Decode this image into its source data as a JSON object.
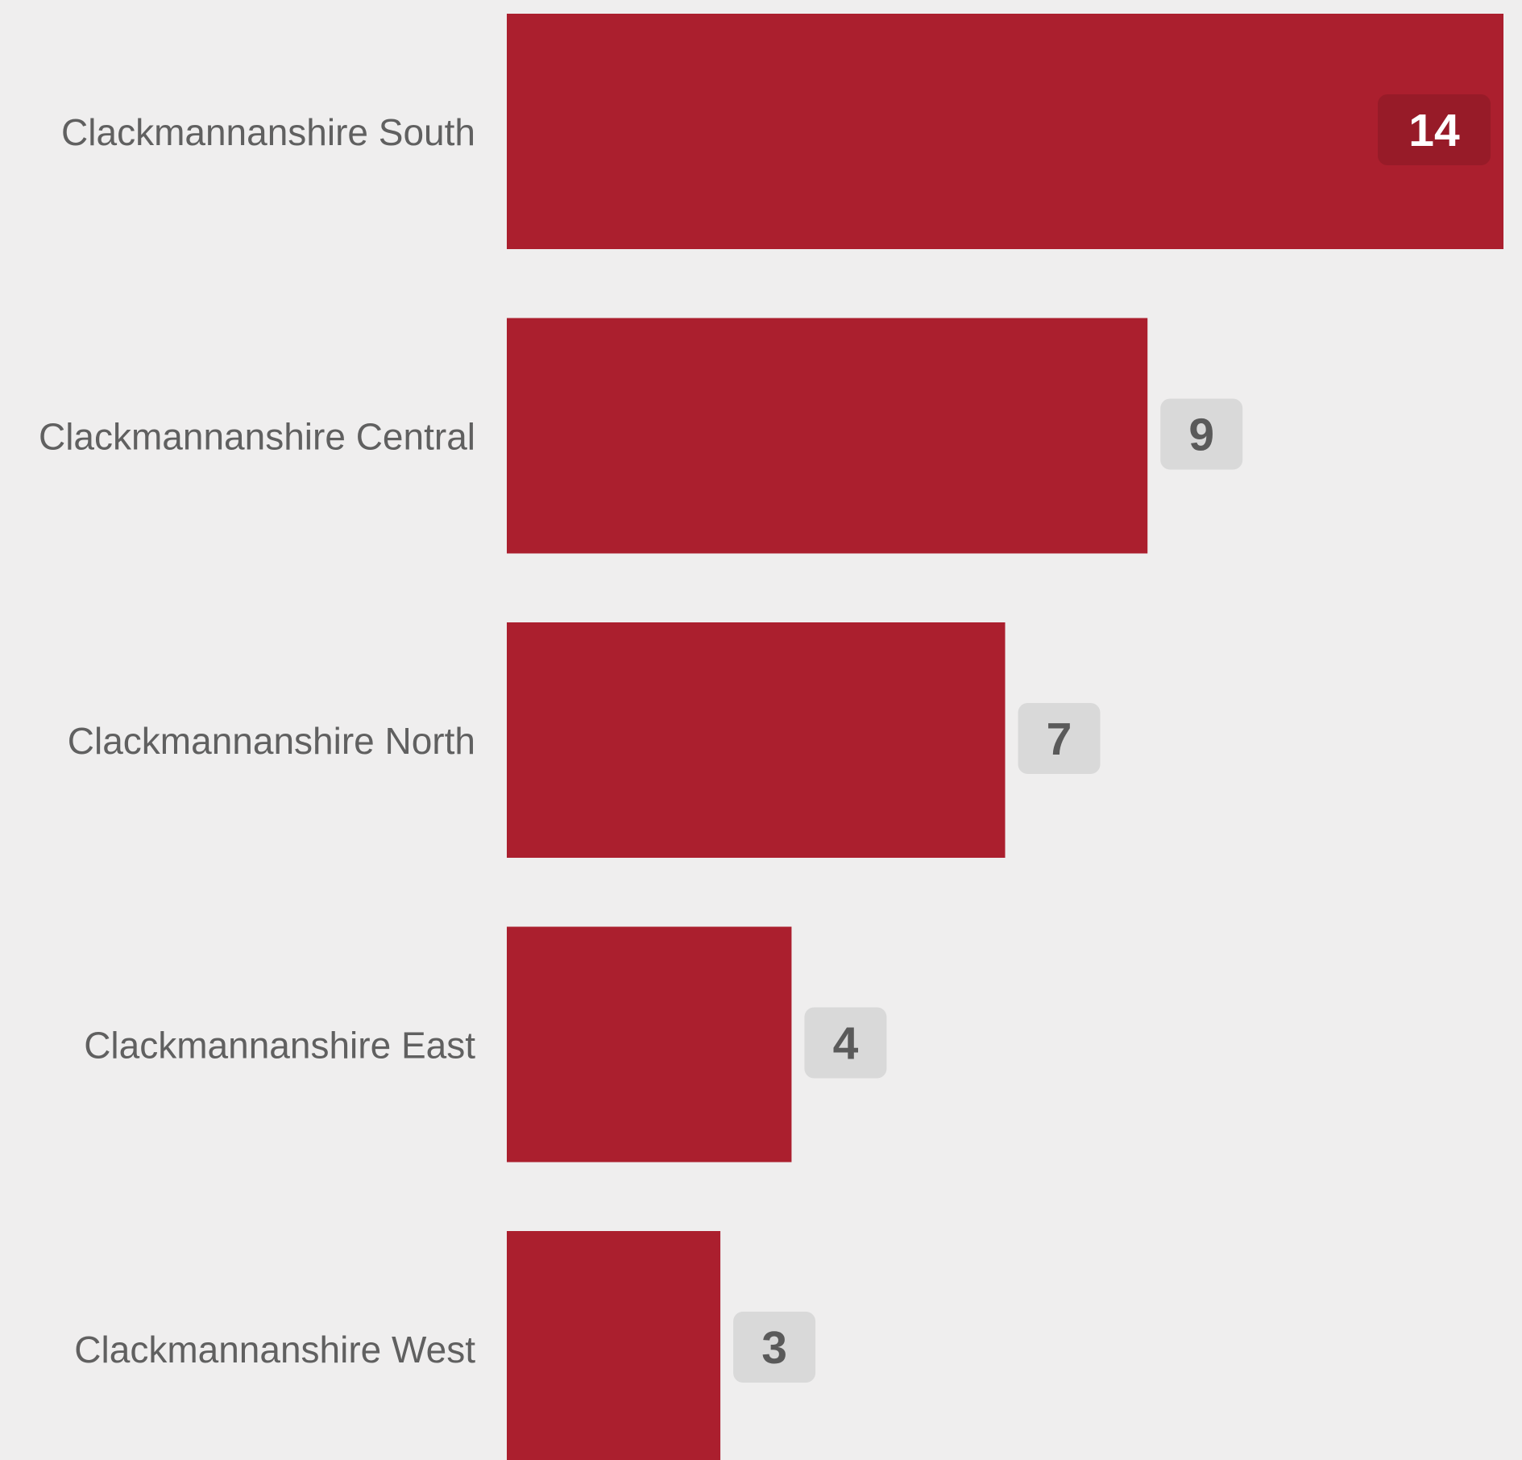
{
  "chart_data": {
    "type": "bar",
    "orientation": "horizontal",
    "title": "",
    "xlabel": "",
    "ylabel": "",
    "categories": [
      "Clackmannanshire South",
      "Clackmannanshire Central",
      "Clackmannanshire North",
      "Clackmannanshire East",
      "Clackmannanshire West"
    ],
    "values": [
      14,
      9,
      7,
      4,
      3
    ],
    "xlim": [
      0,
      14
    ],
    "grid": false,
    "legend": "none",
    "colors": {
      "bar": "#ab1f2e",
      "background": "#efeeee",
      "label_text": "#606060",
      "value_badge": "#d9d9d9",
      "value_badge_inside": "#971b28",
      "value_text": "#5a5a5a",
      "value_text_inside": "#ffffff"
    }
  }
}
